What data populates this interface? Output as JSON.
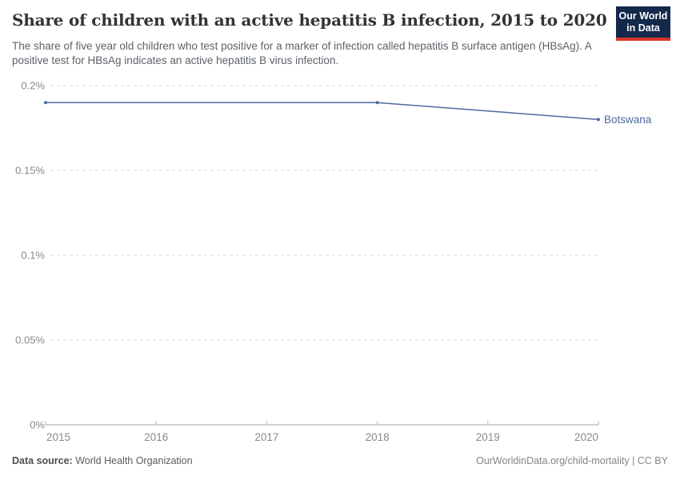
{
  "header": {
    "title": "Share of children with an active hepatitis B infection, 2015 to 2020",
    "subtitle": "The share of five year old children who test positive for a marker of infection called hepatitis B surface antigen (HBsAg). A positive test for HBsAg indicates an active hepatitis B virus infection.",
    "logo": {
      "line1": "Our World",
      "line2": "in Data",
      "bg_color": "#13294b",
      "accent_color": "#dc352d"
    }
  },
  "chart_data": {
    "type": "line",
    "title": "Share of children with an active hepatitis B infection, 2015 to 2020",
    "xlabel": "",
    "ylabel": "",
    "unit": "%",
    "xlim": [
      2015,
      2020
    ],
    "ylim": [
      0,
      0.2
    ],
    "xticks": [
      2015,
      2016,
      2017,
      2018,
      2019,
      2020
    ],
    "yticks": [
      {
        "value": 0,
        "label": "0%"
      },
      {
        "value": 0.05,
        "label": "0.05%"
      },
      {
        "value": 0.1,
        "label": "0.1%"
      },
      {
        "value": 0.15,
        "label": "0.15%"
      },
      {
        "value": 0.2,
        "label": "0.2%"
      }
    ],
    "grid": "horizontal-dashed",
    "legend_position": "end-of-line-label",
    "series": [
      {
        "name": "Botswana",
        "color": "#4c6a9c",
        "points": [
          {
            "x": 2015,
            "y": 0.19
          },
          {
            "x": 2018,
            "y": 0.19
          },
          {
            "x": 2020,
            "y": 0.18
          }
        ]
      }
    ]
  },
  "footer": {
    "source_label": "Data source:",
    "source_value": "World Health Organization",
    "attribution": "OurWorldinData.org/child-mortality | CC BY"
  },
  "colors": {
    "series_blue": "#4c6a9c",
    "gridline": "#d9d9d9",
    "axis_line": "#a3a3a3",
    "tick_label": "#8a8a8a"
  }
}
